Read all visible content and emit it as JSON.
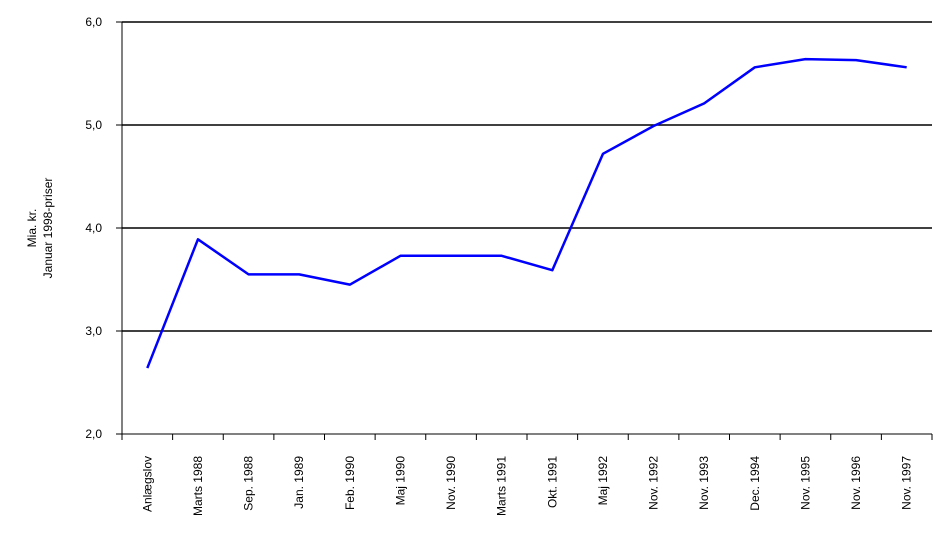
{
  "chart_data": {
    "type": "line",
    "ylabel": [
      "Mia. kr.",
      "Januar 1998-priser"
    ],
    "categories": [
      "Anlægslov",
      "Marts 1988",
      "Sep. 1988",
      "Jan. 1989",
      "Feb. 1990",
      "Maj 1990",
      "Nov. 1990",
      "Marts 1991",
      "Okt. 1991",
      "Maj 1992",
      "Nov. 1992",
      "Nov. 1993",
      "Dec. 1994",
      "Nov. 1995",
      "Nov. 1996",
      "Nov. 1997"
    ],
    "values": [
      2.64,
      3.89,
      3.55,
      3.55,
      3.45,
      3.73,
      3.73,
      3.73,
      3.59,
      4.72,
      4.99,
      5.21,
      5.56,
      5.64,
      5.63,
      5.56
    ],
    "color": "#0000ff",
    "ylim": [
      2,
      6
    ],
    "yticks": [
      {
        "value": 2,
        "label": "2,0"
      },
      {
        "value": 3,
        "label": "3,0"
      },
      {
        "value": 4,
        "label": "4,0"
      },
      {
        "value": 5,
        "label": "5,0"
      },
      {
        "value": 6,
        "label": "6,0"
      }
    ],
    "grid": true
  }
}
